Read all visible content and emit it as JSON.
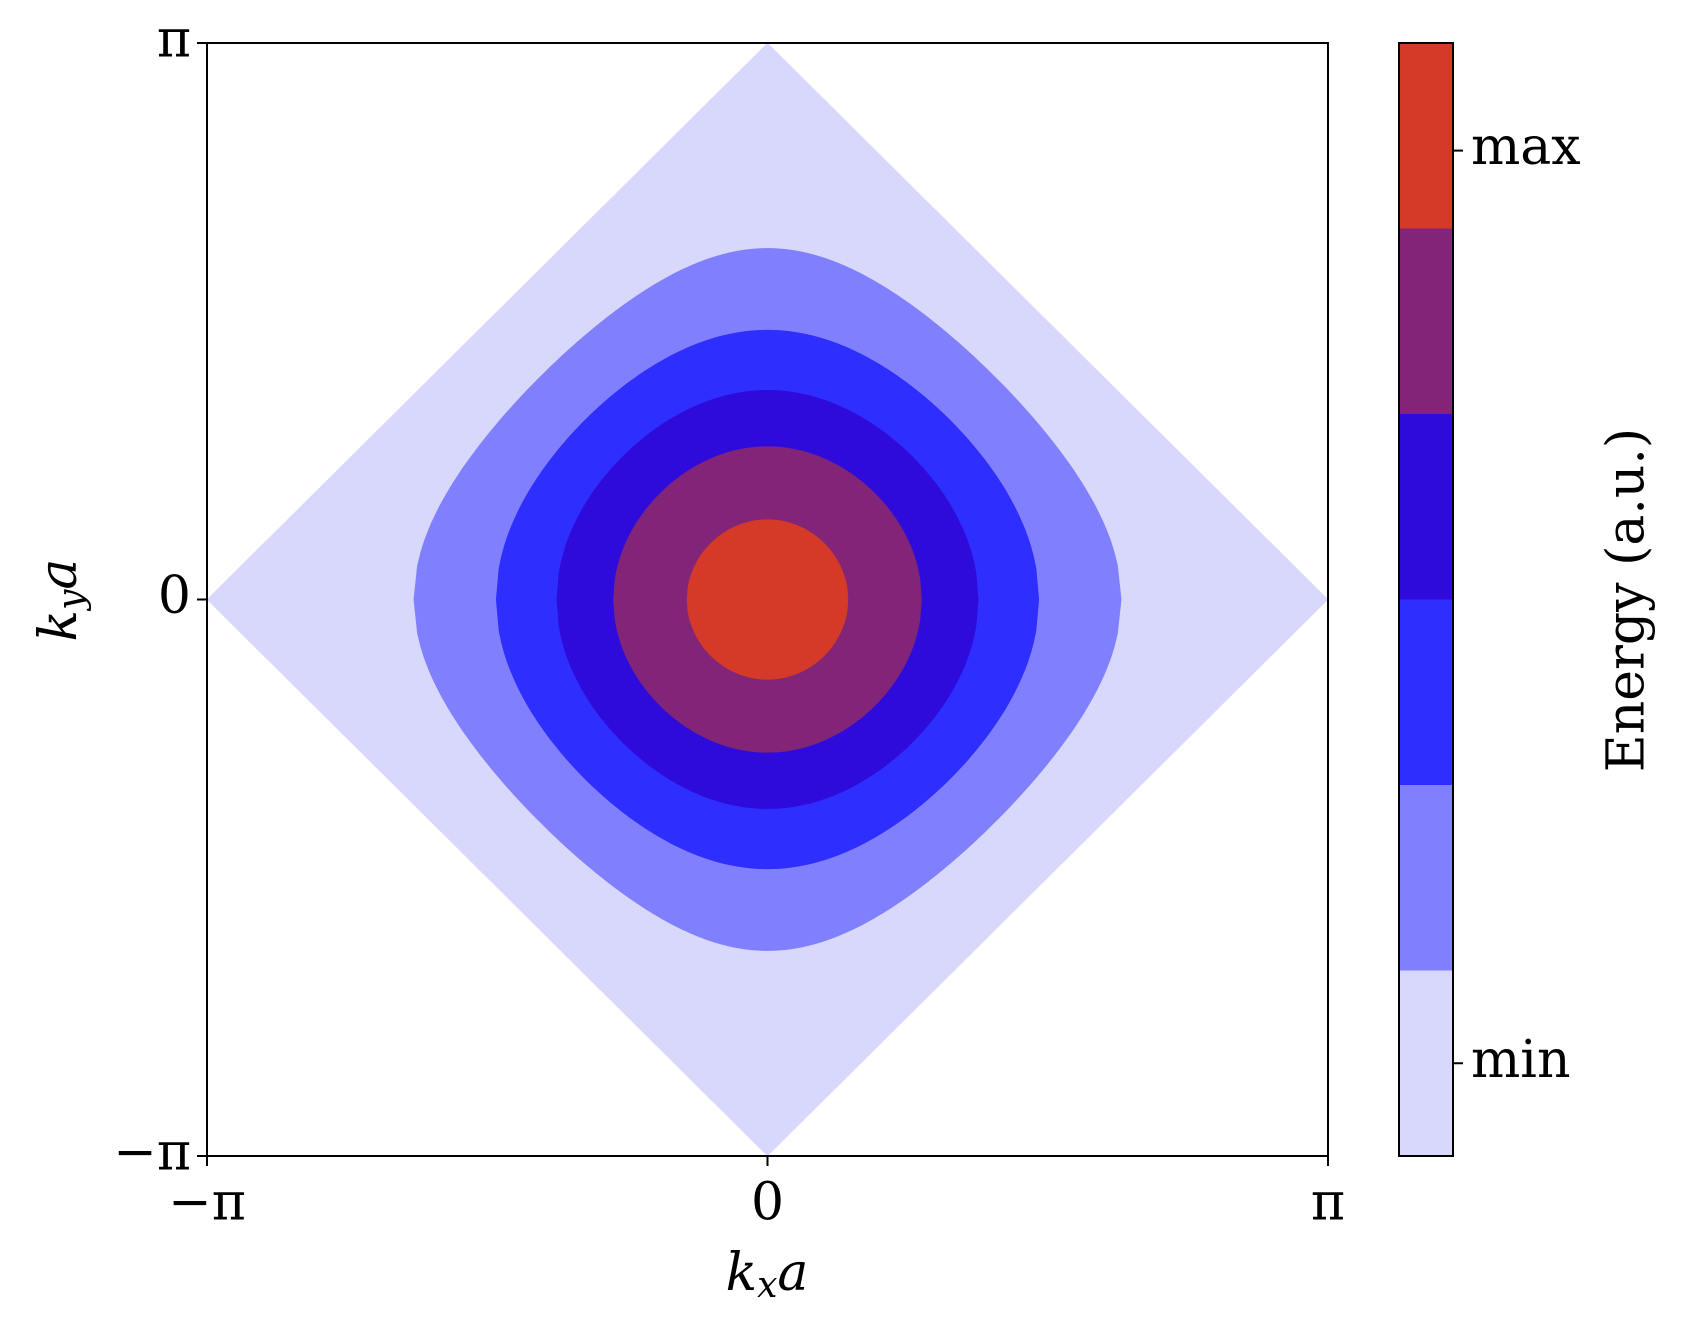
{
  "chart_data": {
    "type": "contour",
    "xlabel": {
      "base": "k",
      "sub": "x",
      "tail": "a"
    },
    "ylabel": {
      "base": "k",
      "sub": "y",
      "tail": "a"
    },
    "xlim": [
      -3.14159,
      3.14159
    ],
    "ylim": [
      -3.14159,
      3.14159
    ],
    "xticks": [
      {
        "value": -3.14159,
        "label": "−π"
      },
      0,
      {
        "value": 3.14159,
        "label": "π"
      }
    ],
    "yticks": [
      {
        "value": -3.14159,
        "label": "−π"
      },
      0,
      {
        "value": 3.14159,
        "label": "π"
      }
    ],
    "levels": [
      0,
      0.6,
      1.05,
      1.38,
      1.65,
      1.9,
      2
    ],
    "colors": [
      "#d8d8fc",
      "#8080ff",
      "#2e2eff",
      "#2e0adb",
      "#822579",
      "#d53a28"
    ],
    "colorbar": {
      "label": "Energy (a.u.)",
      "lim": [
        0,
        6
      ],
      "ticks": [
        {
          "value": 0.5,
          "label": "min"
        },
        {
          "value": 5.42,
          "label": "max"
        }
      ]
    }
  }
}
